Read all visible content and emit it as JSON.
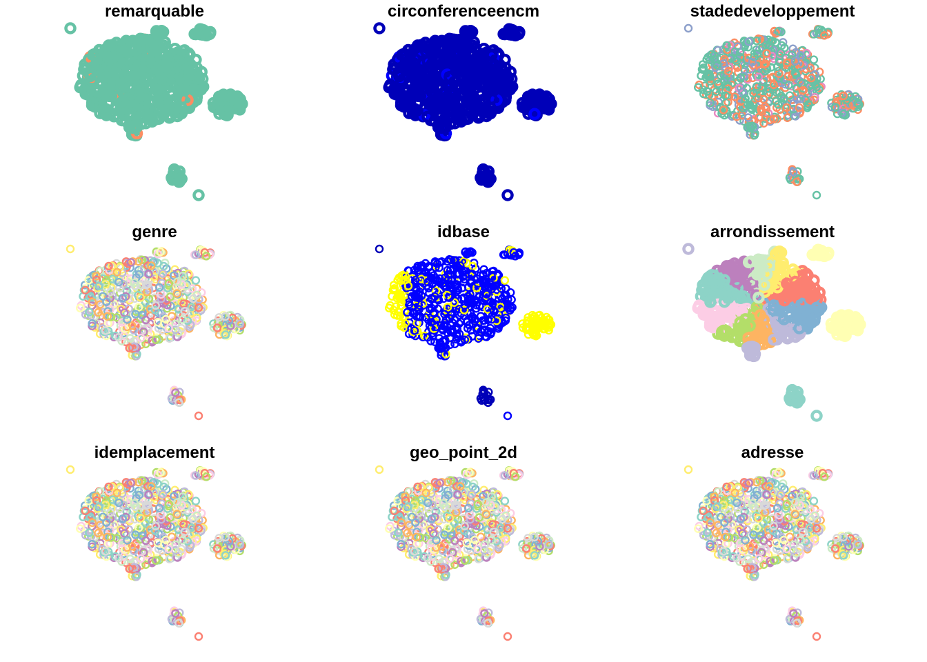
{
  "chart_data": {
    "type": "scatter",
    "layout": "3x3 grid of panels; shared scatter of open circles colored by attribute",
    "marker": "open circle",
    "axes": "hidden",
    "grid": false,
    "legend": "none",
    "panels": [
      {
        "title": "remarquable",
        "colors": [
          "#66c2a5",
          "#fc8d62"
        ]
      },
      {
        "title": "circonferenceencm",
        "colors": [
          "#0000b8",
          "#0000ff"
        ]
      },
      {
        "title": "stadedeveloppement",
        "colors": [
          "#66c2a5",
          "#fc8d62",
          "#8da0cb",
          "#e78ac3"
        ]
      },
      {
        "title": "genre",
        "colors": [
          "#8dd3c7",
          "#ffffb3",
          "#bebada",
          "#fb8072",
          "#80b1d3",
          "#fdb462",
          "#b3de69",
          "#fccde5",
          "#d9d9d9",
          "#bc80bd",
          "#ccebc5",
          "#ffed6f"
        ]
      },
      {
        "title": "idbase",
        "colors": [
          "#0000b8",
          "#0000ff",
          "#ffff00"
        ]
      },
      {
        "title": "arrondissement",
        "colors": [
          "#8dd3c7",
          "#ffffb3",
          "#bebada",
          "#fb8072",
          "#80b1d3",
          "#fdb462",
          "#b3de69",
          "#fccde5",
          "#d9d9d9",
          "#bc80bd",
          "#ccebc5",
          "#ffed6f"
        ]
      },
      {
        "title": "idemplacement",
        "colors": [
          "#8dd3c7",
          "#ffffb3",
          "#bebada",
          "#fb8072",
          "#80b1d3",
          "#fdb462",
          "#b3de69",
          "#fccde5",
          "#d9d9d9",
          "#bc80bd",
          "#ccebc5",
          "#ffed6f"
        ]
      },
      {
        "title": "geo_point_2d",
        "colors": [
          "#8dd3c7",
          "#ffffb3",
          "#bebada",
          "#fb8072",
          "#80b1d3",
          "#fdb462",
          "#b3de69",
          "#fccde5",
          "#d9d9d9",
          "#bc80bd",
          "#ccebc5",
          "#ffed6f"
        ]
      },
      {
        "title": "adresse",
        "colors": [
          "#8dd3c7",
          "#ffffb3",
          "#bebada",
          "#fb8072",
          "#80b1d3",
          "#fdb462",
          "#b3de69",
          "#fccde5",
          "#d9d9d9",
          "#bc80bd",
          "#ccebc5",
          "#ffed6f"
        ]
      }
    ]
  }
}
